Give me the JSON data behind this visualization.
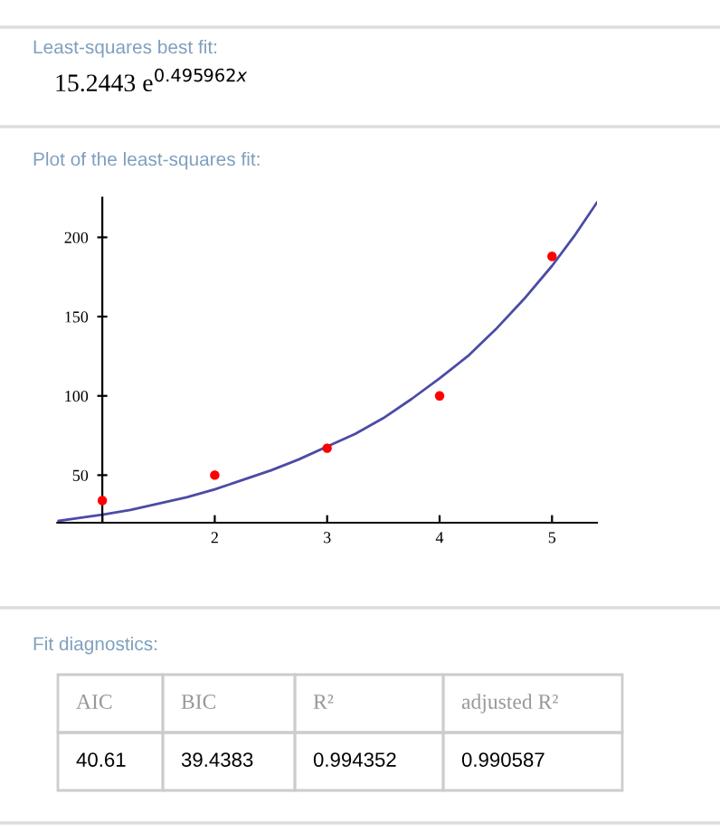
{
  "chart_data": {
    "type": "scatter",
    "title": "Least-squares best fit:",
    "subtitle": "Plot of the least-squares fit:",
    "annotations": [
      "15.2443 e$^{0.495962x}$",
      "Fit diagnostics:",
      "AIC",
      "BIC",
      "R²",
      "adjusted R²",
      "40.61",
      "39.4383",
      "0.994352",
      "0.990587"
    ],
    "x": [
      1,
      2,
      3,
      4,
      5
    ],
    "series": [
      {
        "color": "#ff0000",
        "marker": "circle",
        "values": [
          34,
          50,
          67,
          100,
          188
        ]
      },
      {
        "type": "line",
        "color": "#4b4ba6",
        "marker": "none",
        "line_style": "solid",
        "x": [
          0.6,
          0.8,
          1.0,
          1.25,
          1.5,
          1.75,
          2.0,
          2.25,
          2.5,
          2.75,
          3.0,
          3.25,
          3.5,
          3.75,
          4.0,
          4.25,
          4.5,
          4.75,
          5.0,
          5.2,
          5.4
        ],
        "values": [
          21,
          23,
          25,
          28,
          32,
          36,
          41,
          47,
          53,
          60,
          68,
          76,
          86,
          98,
          111,
          125,
          142,
          161,
          182,
          201,
          222
        ]
      }
    ],
    "xlim": [
      0.6,
      5.4
    ],
    "ylim": [
      20,
      225
    ],
    "xticks": [
      {
        "value": 1,
        "label": null
      },
      2,
      3,
      4,
      5
    ],
    "yticks": [
      50,
      100,
      150,
      200
    ],
    "grid": false,
    "legend": false
  }
}
